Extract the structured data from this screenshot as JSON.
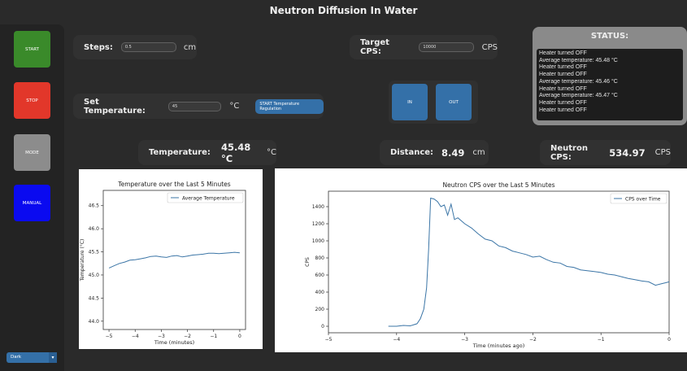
{
  "window_title": "Neutron Diffusion In Water",
  "sidebar": {
    "buttons": [
      {
        "label": "START",
        "color": "#3a8a2a"
      },
      {
        "label": "STOP",
        "color": "#e2372a"
      },
      {
        "label": "MODE",
        "color": "#8c8c8c"
      },
      {
        "label": "MANUAL",
        "color": "#0a0af0"
      }
    ],
    "theme_select": {
      "value": "Dark"
    }
  },
  "steps": {
    "label": "Steps:",
    "value": "0.5",
    "unit": "cm"
  },
  "target_cps": {
    "label": "Target CPS:",
    "value": "10000",
    "unit": "CPS"
  },
  "set_temperature": {
    "label": "Set Temperature:",
    "value": "45",
    "unit": "°C",
    "button": "START Temperature Regulation"
  },
  "motion": {
    "in_label": "IN",
    "out_label": "OUT",
    "color": "#3470a8"
  },
  "status": {
    "title": "STATUS:",
    "log": [
      "Heater turned OFF",
      "Average temperature: 45.48 °C",
      "Heater turned OFF",
      "Heater turned OFF",
      "Average temperature: 45.46 °C",
      "Heater turned OFF",
      "Average temperature: 45.47 °C",
      "Heater turned OFF",
      "Heater turned OFF"
    ]
  },
  "readouts": {
    "temperature": {
      "label": "Temperature:",
      "value": "45.48 °C",
      "unit": "°C"
    },
    "distance": {
      "label": "Distance:",
      "value": "8.49",
      "unit": "cm"
    },
    "neutron_cps": {
      "label": "Neutron CPS:",
      "value": "534.97",
      "unit": "CPS"
    }
  },
  "chart_data": [
    {
      "type": "line",
      "title": "Temperature over the Last 5 Minutes",
      "xlabel": "Time (minutes)",
      "ylabel": "Temperature (°C)",
      "xlim": [
        -5.22,
        0.22
      ],
      "ylim": [
        43.82,
        46.83
      ],
      "xticks": [
        -5,
        -4,
        -3,
        -2,
        -1,
        0
      ],
      "xtick_labels": [
        "−5",
        "−4",
        "−3",
        "−2",
        "−1",
        "0"
      ],
      "yticks": [
        44.0,
        44.5,
        45.0,
        45.5,
        46.0,
        46.5
      ],
      "ytick_labels": [
        "44.0",
        "44.5",
        "45.0",
        "45.5",
        "46.0",
        "46.5"
      ],
      "legend": "top-right",
      "grid": false,
      "series": [
        {
          "name": "Average Temperature",
          "color": "#3b75a6",
          "x": [
            -5,
            -4.8,
            -4.6,
            -4.4,
            -4.2,
            -4.0,
            -3.8,
            -3.6,
            -3.4,
            -3.2,
            -3.0,
            -2.8,
            -2.6,
            -2.4,
            -2.2,
            -2.0,
            -1.8,
            -1.6,
            -1.4,
            -1.2,
            -1.0,
            -0.8,
            -0.6,
            -0.4,
            -0.2,
            0
          ],
          "y": [
            45.15,
            45.2,
            45.25,
            45.28,
            45.32,
            45.33,
            45.35,
            45.37,
            45.4,
            45.41,
            45.39,
            45.38,
            45.41,
            45.42,
            45.39,
            45.41,
            45.43,
            45.44,
            45.45,
            45.47,
            45.47,
            45.46,
            45.47,
            45.48,
            45.49,
            45.48
          ]
        }
      ]
    },
    {
      "type": "line",
      "title": "Neutron CPS over the Last 5 Minutes",
      "xlabel": "Time (minutes ago)",
      "ylabel": "CPS",
      "xlim": [
        -5,
        0
      ],
      "ylim": [
        -76,
        1581
      ],
      "xticks": [
        -5,
        -4,
        -3,
        -2,
        -1,
        0
      ],
      "xtick_labels": [
        "−5",
        "−4",
        "−3",
        "−2",
        "−1",
        "0"
      ],
      "yticks": [
        0,
        200,
        400,
        600,
        800,
        1000,
        1200,
        1400
      ],
      "ytick_labels": [
        "0",
        "200",
        "400",
        "600",
        "800",
        "1000",
        "1200",
        "1400"
      ],
      "legend": "top-right",
      "grid": false,
      "series": [
        {
          "name": "CPS over Time",
          "color": "#3b75a6",
          "x": [
            -4.12,
            -4.0,
            -3.9,
            -3.8,
            -3.7,
            -3.65,
            -3.6,
            -3.56,
            -3.53,
            -3.5,
            -3.45,
            -3.4,
            -3.35,
            -3.3,
            -3.25,
            -3.2,
            -3.15,
            -3.1,
            -3.0,
            -2.9,
            -2.8,
            -2.7,
            -2.6,
            -2.5,
            -2.4,
            -2.3,
            -2.2,
            -2.1,
            -2.0,
            -1.9,
            -1.8,
            -1.7,
            -1.6,
            -1.5,
            -1.4,
            -1.3,
            -1.2,
            -1.1,
            -1.0,
            -0.9,
            -0.8,
            -0.7,
            -0.6,
            -0.5,
            -0.4,
            -0.3,
            -0.2,
            -0.1,
            -0.05,
            0
          ],
          "y": [
            0,
            0,
            10,
            5,
            30,
            90,
            200,
            450,
            900,
            1500,
            1490,
            1460,
            1400,
            1420,
            1300,
            1430,
            1250,
            1270,
            1200,
            1150,
            1080,
            1020,
            1000,
            940,
            920,
            880,
            860,
            840,
            810,
            820,
            780,
            750,
            740,
            700,
            690,
            660,
            650,
            640,
            630,
            610,
            600,
            580,
            560,
            545,
            530,
            520,
            480,
            500,
            510,
            520
          ]
        }
      ]
    }
  ]
}
